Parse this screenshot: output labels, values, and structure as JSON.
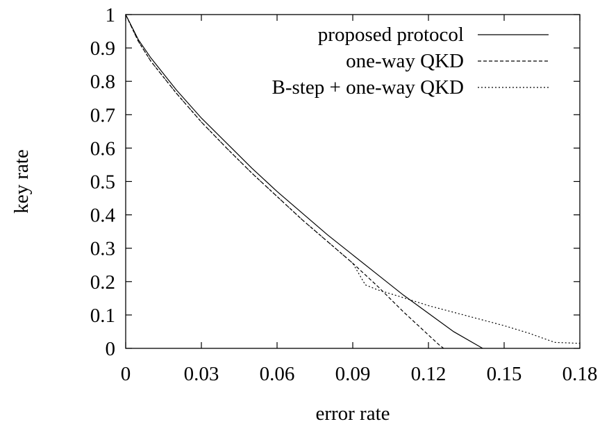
{
  "chart_data": {
    "type": "line",
    "title": "",
    "xlabel": "error rate",
    "ylabel": "key rate",
    "xlim": [
      0,
      0.18
    ],
    "ylim": [
      0,
      1
    ],
    "xticks": [
      0,
      0.03,
      0.06,
      0.09,
      0.12,
      0.15,
      0.18
    ],
    "xtick_labels": [
      "0",
      "0.03",
      "0.06",
      "0.09",
      "0.12",
      "0.15",
      "0.18"
    ],
    "yticks": [
      0,
      0.1,
      0.2,
      0.3,
      0.4,
      0.5,
      0.6,
      0.7,
      0.8,
      0.9,
      1
    ],
    "ytick_labels": [
      "0",
      "0.1",
      "0.2",
      "0.3",
      "0.4",
      "0.5",
      "0.6",
      "0.7",
      "0.8",
      "0.9",
      "1"
    ],
    "grid": false,
    "legend_position": "top-right",
    "series": [
      {
        "name": "proposed protocol",
        "style": "solid",
        "x": [
          0,
          0.005,
          0.01,
          0.02,
          0.03,
          0.04,
          0.05,
          0.06,
          0.07,
          0.08,
          0.09,
          0.1,
          0.11,
          0.12,
          0.13,
          0.1415
        ],
        "y": [
          1,
          0.925,
          0.87,
          0.775,
          0.69,
          0.615,
          0.54,
          0.47,
          0.405,
          0.34,
          0.28,
          0.22,
          0.16,
          0.105,
          0.05,
          0
        ]
      },
      {
        "name": "one-way QKD",
        "style": "dashed",
        "x": [
          0,
          0.005,
          0.01,
          0.02,
          0.03,
          0.04,
          0.05,
          0.06,
          0.07,
          0.08,
          0.09,
          0.1,
          0.11,
          0.12,
          0.124,
          0.126
        ],
        "y": [
          1,
          0.92,
          0.86,
          0.765,
          0.678,
          0.6,
          0.525,
          0.455,
          0.385,
          0.32,
          0.255,
          0.185,
          0.11,
          0.04,
          0.012,
          0
        ]
      },
      {
        "name": "B-step + one-way QKD",
        "style": "dotted",
        "x": [
          0,
          0.005,
          0.01,
          0.02,
          0.03,
          0.04,
          0.05,
          0.06,
          0.07,
          0.08,
          0.09,
          0.095,
          0.1,
          0.11,
          0.12,
          0.13,
          0.14,
          0.15,
          0.16,
          0.17,
          0.18
        ],
        "y": [
          1,
          0.92,
          0.86,
          0.765,
          0.678,
          0.6,
          0.525,
          0.455,
          0.385,
          0.32,
          0.255,
          0.19,
          0.175,
          0.152,
          0.128,
          0.108,
          0.088,
          0.068,
          0.045,
          0.018,
          0.015
        ]
      }
    ]
  }
}
